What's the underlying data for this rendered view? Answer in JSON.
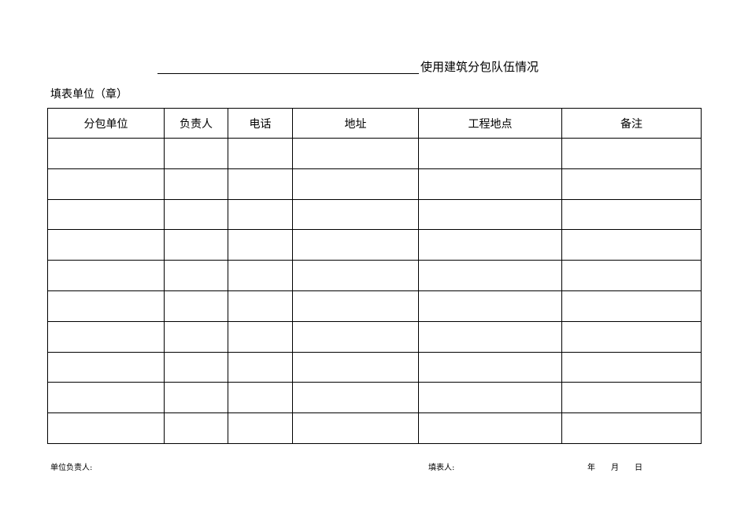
{
  "title": {
    "blank": "",
    "text": "使用建筑分包队伍情况"
  },
  "unit_label": "填表单位（章）",
  "table": {
    "headers": [
      "分包单位",
      "负责人",
      "电话",
      "地址",
      "工程地点",
      "备注"
    ],
    "row_count": 10
  },
  "footer": {
    "unit_head": "单位负责人:",
    "filled_by": "填表人:",
    "year": "年",
    "month": "月",
    "day": "日"
  }
}
